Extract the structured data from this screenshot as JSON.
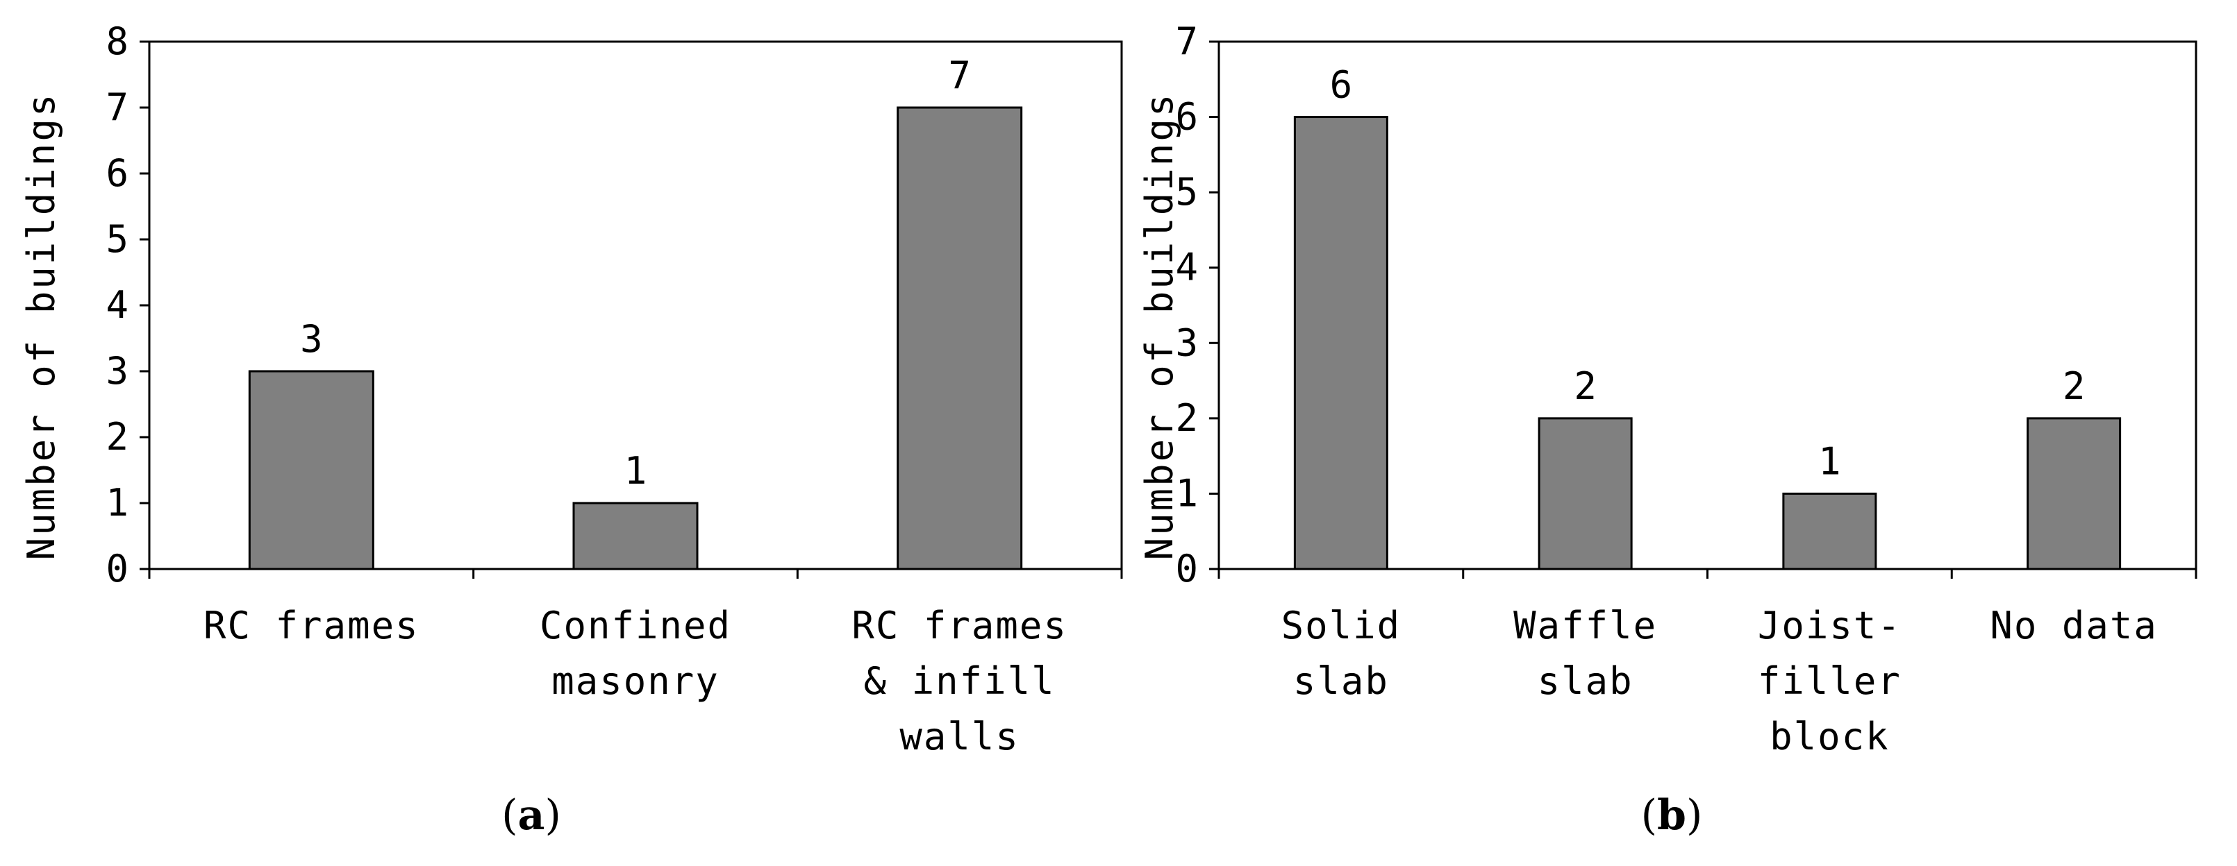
{
  "chart_data": [
    {
      "type": "bar",
      "ylabel": "Number of buildings",
      "ylim": [
        0,
        8
      ],
      "yticks": [
        0,
        1,
        2,
        3,
        4,
        5,
        6,
        7,
        8
      ],
      "categories": [
        [
          "RC frames"
        ],
        [
          "Confined",
          "masonry"
        ],
        [
          "RC frames",
          "& infill",
          "walls"
        ]
      ],
      "values": [
        3,
        1,
        7
      ],
      "data_labels": [
        "3",
        "1",
        "7"
      ],
      "caption": "a",
      "bar_color": "#808080",
      "grid": false
    },
    {
      "type": "bar",
      "ylabel": "Number of buildings",
      "ylim": [
        0,
        7
      ],
      "yticks": [
        0,
        1,
        2,
        3,
        4,
        5,
        6,
        7
      ],
      "categories": [
        [
          "Solid",
          "slab"
        ],
        [
          "Waffle",
          "slab"
        ],
        [
          "Joist-",
          "filler",
          "block"
        ],
        [
          "No data"
        ]
      ],
      "values": [
        6,
        2,
        1,
        2
      ],
      "data_labels": [
        "6",
        "2",
        "1",
        "2"
      ],
      "caption": "b",
      "bar_color": "#808080",
      "grid": false
    }
  ]
}
